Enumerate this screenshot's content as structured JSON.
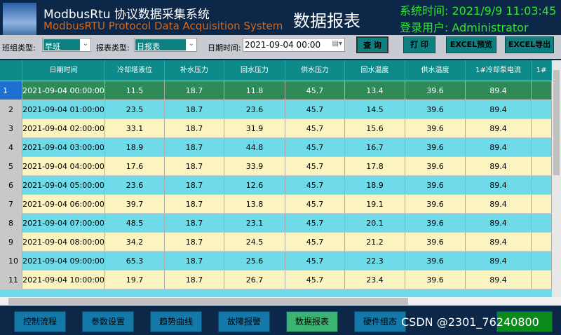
{
  "header": {
    "title_cn": "ModbusRtu 协议数据采集系统",
    "title_en": "ModbusRTU Protocol Data Acquisition System",
    "page_title": "数据报表",
    "system_time": "系统时间:  2021/9/9 11:03:45",
    "login_user": "登录用户:  Administrator"
  },
  "toolbar": {
    "shift_label": "班组类型:",
    "shift_value": "早班",
    "report_label": "报表类型:",
    "report_value": "日报表",
    "date_label": "日期时间:",
    "date_value": "2021-09-04 00:00",
    "query": "查 询",
    "print": "打 印",
    "excel_preview": "EXCEL预览",
    "excel_export": "EXCEL导出"
  },
  "table": {
    "columns": [
      "日期时间",
      "冷却塔液位",
      "补水压力",
      "回水压力",
      "供水压力",
      "回水温度",
      "供水温度",
      "1#冷却泵电流",
      "1#"
    ],
    "rows": [
      [
        "1",
        "2021-09-04 00:00:00",
        "11.5",
        "18.7",
        "11.8",
        "45.7",
        "13.4",
        "39.6",
        "89.4"
      ],
      [
        "2",
        "2021-09-04 01:00:00",
        "23.5",
        "18.7",
        "23.6",
        "45.7",
        "14.5",
        "39.6",
        "89.4"
      ],
      [
        "3",
        "2021-09-04 02:00:00",
        "33.1",
        "18.7",
        "31.9",
        "45.7",
        "15.6",
        "39.6",
        "89.4"
      ],
      [
        "4",
        "2021-09-04 03:00:00",
        "18.9",
        "18.7",
        "44.8",
        "45.7",
        "16.7",
        "39.6",
        "89.4"
      ],
      [
        "5",
        "2021-09-04 04:00:00",
        "17.6",
        "18.7",
        "33.9",
        "45.7",
        "17.8",
        "39.6",
        "89.4"
      ],
      [
        "6",
        "2021-09-04 05:00:00",
        "23.6",
        "18.7",
        "12.6",
        "45.7",
        "18.9",
        "39.6",
        "89.4"
      ],
      [
        "7",
        "2021-09-04 06:00:00",
        "39.7",
        "18.7",
        "13.8",
        "45.7",
        "19.1",
        "39.6",
        "89.4"
      ],
      [
        "8",
        "2021-09-04 07:00:00",
        "48.5",
        "18.7",
        "23.1",
        "45.7",
        "20.1",
        "39.6",
        "89.4"
      ],
      [
        "9",
        "2021-09-04 08:00:00",
        "34.2",
        "18.7",
        "24.5",
        "45.7",
        "21.2",
        "39.6",
        "89.4"
      ],
      [
        "10",
        "2021-09-04 09:00:00",
        "65.3",
        "18.7",
        "25.6",
        "45.7",
        "22.3",
        "39.6",
        "89.4"
      ],
      [
        "11",
        "2021-09-04 10:00:00",
        "19.7",
        "18.7",
        "26.7",
        "45.7",
        "23.4",
        "39.6",
        "89.4"
      ]
    ]
  },
  "nav": [
    "控制流程",
    "参数设置",
    "趋势曲线",
    "故障报警",
    "数据报表",
    "硬件组态"
  ],
  "watermark": "CSDN @2301_76240800",
  "colors": {
    "selected_row": "#2e8b57",
    "even_row": "#6fdbe8",
    "odd_row": "#fbf3c0",
    "header": "#0e8a8a",
    "active_nav": "#3cb371"
  }
}
